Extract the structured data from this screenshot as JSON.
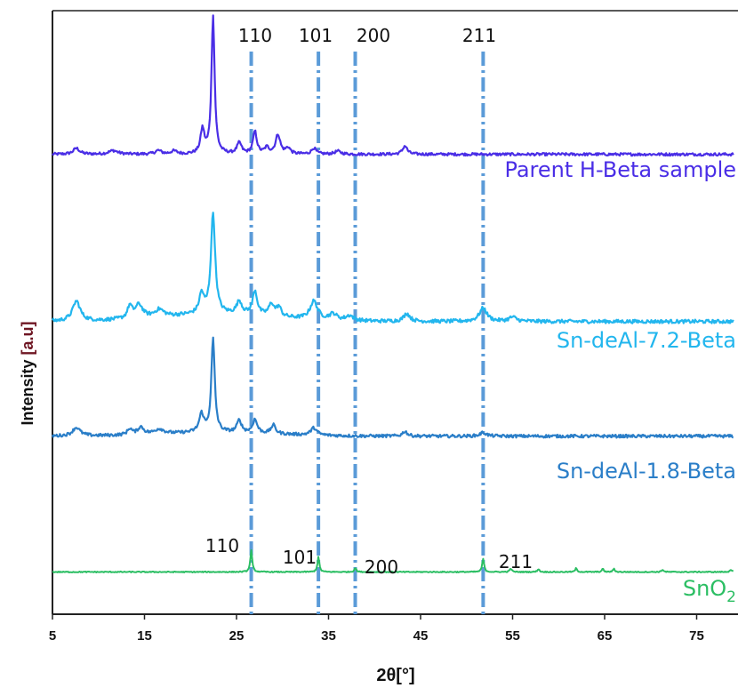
{
  "chart_data": {
    "type": "line",
    "xlabel": "2θ[°]",
    "ylabel_main": "Intensity ",
    "ylabel_unit": "[a.u]",
    "xlim": [
      5,
      79
    ],
    "xticks": [
      5,
      15,
      25,
      35,
      45,
      55,
      65,
      75
    ],
    "reference_lines": [
      {
        "x": 26.6,
        "label": "110"
      },
      {
        "x": 33.9,
        "label": "101"
      },
      {
        "x": 37.9,
        "label": "200"
      },
      {
        "x": 51.8,
        "label": "211"
      }
    ],
    "series": [
      {
        "name": "Parent H-Beta sample",
        "color": "#4a2ee6",
        "baseline": 0.762,
        "peaks": [
          [
            7.6,
            0.4,
            0.01
          ],
          [
            11.6,
            0.6,
            0.006
          ],
          [
            16.5,
            0.4,
            0.006
          ],
          [
            18.2,
            0.4,
            0.005
          ],
          [
            21.3,
            0.25,
            0.04
          ],
          [
            22.45,
            0.2,
            0.23
          ],
          [
            25.3,
            0.3,
            0.018
          ],
          [
            27.0,
            0.25,
            0.037
          ],
          [
            28.3,
            0.3,
            0.01
          ],
          [
            29.5,
            0.3,
            0.032
          ],
          [
            30.6,
            0.3,
            0.01
          ],
          [
            33.4,
            0.3,
            0.01
          ],
          [
            36.0,
            0.4,
            0.005
          ],
          [
            43.3,
            0.3,
            0.014
          ]
        ]
      },
      {
        "name": "Sn-deAl-7.2-Beta",
        "color": "#22b6ee",
        "baseline": 0.485,
        "peaks": [
          [
            7.6,
            0.5,
            0.033
          ],
          [
            13.4,
            0.3,
            0.02
          ],
          [
            14.4,
            0.5,
            0.022
          ],
          [
            16.6,
            0.6,
            0.012
          ],
          [
            21.2,
            0.3,
            0.032
          ],
          [
            22.45,
            0.28,
            0.166
          ],
          [
            25.3,
            0.35,
            0.021
          ],
          [
            27.0,
            0.3,
            0.04
          ],
          [
            28.8,
            0.35,
            0.02
          ],
          [
            29.6,
            0.3,
            0.015
          ],
          [
            33.4,
            0.5,
            0.03
          ],
          [
            35.5,
            0.5,
            0.01
          ],
          [
            37.3,
            0.5,
            0.008
          ],
          [
            43.5,
            0.4,
            0.013
          ],
          [
            51.8,
            0.5,
            0.022
          ],
          [
            55.0,
            0.5,
            0.007
          ]
        ]
      },
      {
        "name": "Sn-deAl-1.8-Beta",
        "color": "#2a7ec8",
        "baseline": 0.295,
        "peaks": [
          [
            7.6,
            0.5,
            0.014
          ],
          [
            13.4,
            0.3,
            0.01
          ],
          [
            14.6,
            0.4,
            0.012
          ],
          [
            16.6,
            0.6,
            0.008
          ],
          [
            21.2,
            0.3,
            0.03
          ],
          [
            22.45,
            0.22,
            0.155
          ],
          [
            25.3,
            0.3,
            0.02
          ],
          [
            27.0,
            0.3,
            0.022
          ],
          [
            29.0,
            0.3,
            0.014
          ],
          [
            33.4,
            0.4,
            0.012
          ],
          [
            43.3,
            0.3,
            0.008
          ],
          [
            51.8,
            0.4,
            0.006
          ]
        ]
      },
      {
        "name": "SnO",
        "name_sub": "2",
        "color": "#2bbe63",
        "baseline": 0.07,
        "peaks": [
          [
            26.6,
            0.12,
            0.036
          ],
          [
            33.9,
            0.12,
            0.025
          ],
          [
            37.9,
            0.12,
            0.007
          ],
          [
            51.8,
            0.12,
            0.022
          ],
          [
            54.8,
            0.12,
            0.006
          ],
          [
            57.8,
            0.12,
            0.005
          ],
          [
            61.9,
            0.12,
            0.006
          ],
          [
            64.8,
            0.12,
            0.005
          ],
          [
            66.0,
            0.12,
            0.005
          ],
          [
            71.3,
            0.12,
            0.004
          ],
          [
            78.7,
            0.12,
            0.004
          ]
        ]
      }
    ],
    "top_peak_labels": [
      "110",
      "101",
      "200",
      "211"
    ],
    "snO2_peak_labels": [
      {
        "x": 26.6,
        "label": "110"
      },
      {
        "x": 33.9,
        "label": "101"
      },
      {
        "x": 37.9,
        "label": "200"
      },
      {
        "x": 51.8,
        "label": "211"
      }
    ]
  }
}
